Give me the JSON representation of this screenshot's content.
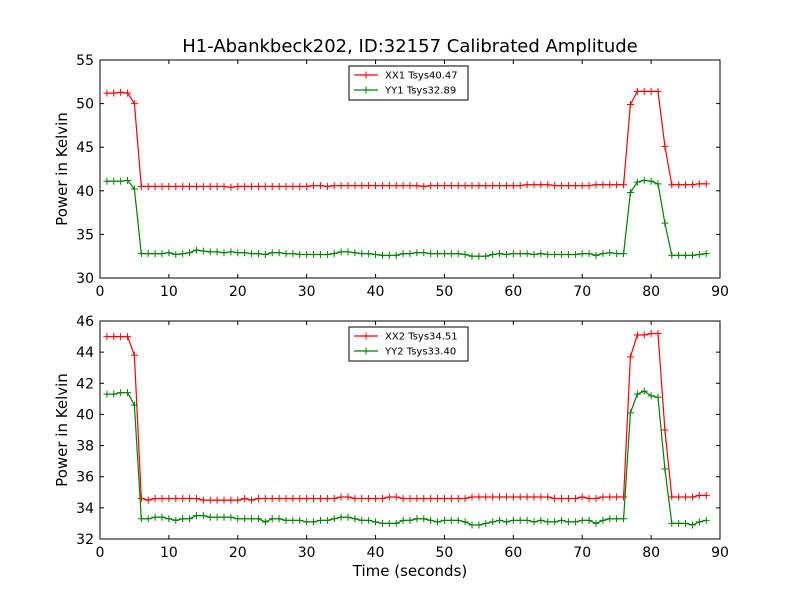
{
  "figure": {
    "title": "H1-Abankbeck202, ID:32157 Calibrated Amplitude",
    "xlabel": "Time (seconds)"
  },
  "chart_data": [
    {
      "type": "line",
      "ylabel": "Power in Kelvin",
      "xlim": [
        0,
        90
      ],
      "ylim": [
        30,
        55
      ],
      "xticks": [
        0,
        10,
        20,
        30,
        40,
        50,
        60,
        70,
        80,
        90
      ],
      "yticks": [
        30,
        35,
        40,
        45,
        50,
        55
      ],
      "grid": false,
      "legend": "top-center",
      "x": [
        1,
        2,
        3,
        4,
        5,
        6,
        7,
        8,
        9,
        10,
        11,
        12,
        13,
        14,
        15,
        16,
        17,
        18,
        19,
        20,
        21,
        22,
        23,
        24,
        25,
        26,
        27,
        28,
        29,
        30,
        31,
        32,
        33,
        34,
        35,
        36,
        37,
        38,
        39,
        40,
        41,
        42,
        43,
        44,
        45,
        46,
        47,
        48,
        49,
        50,
        51,
        52,
        53,
        54,
        55,
        56,
        57,
        58,
        59,
        60,
        61,
        62,
        63,
        64,
        65,
        66,
        67,
        68,
        69,
        70,
        71,
        72,
        73,
        74,
        75,
        76,
        77,
        78,
        79,
        80,
        81,
        82,
        83,
        84,
        85,
        86,
        87,
        88
      ],
      "series": [
        {
          "name": "XX1 Tsys40.47",
          "color": "#ff0000",
          "values": [
            51.2,
            51.2,
            51.3,
            51.2,
            50.0,
            40.5,
            40.5,
            40.5,
            40.5,
            40.5,
            40.5,
            40.5,
            40.5,
            40.5,
            40.5,
            40.5,
            40.5,
            40.5,
            40.4,
            40.5,
            40.5,
            40.5,
            40.5,
            40.5,
            40.5,
            40.5,
            40.5,
            40.5,
            40.5,
            40.5,
            40.6,
            40.6,
            40.5,
            40.6,
            40.6,
            40.6,
            40.6,
            40.6,
            40.6,
            40.6,
            40.6,
            40.6,
            40.6,
            40.6,
            40.6,
            40.6,
            40.5,
            40.6,
            40.6,
            40.6,
            40.6,
            40.6,
            40.6,
            40.6,
            40.6,
            40.6,
            40.6,
            40.6,
            40.6,
            40.6,
            40.6,
            40.7,
            40.7,
            40.7,
            40.7,
            40.6,
            40.6,
            40.6,
            40.6,
            40.6,
            40.6,
            40.7,
            40.7,
            40.7,
            40.7,
            40.7,
            49.9,
            51.4,
            51.4,
            51.4,
            51.4,
            45.1,
            40.7,
            40.7,
            40.7,
            40.7,
            40.8,
            40.8
          ]
        },
        {
          "name": "YY1 Tsys32.89",
          "color": "#008000",
          "values": [
            41.1,
            41.1,
            41.1,
            41.2,
            40.2,
            32.8,
            32.8,
            32.8,
            32.8,
            32.9,
            32.7,
            32.8,
            32.9,
            33.2,
            33.1,
            33.0,
            33.0,
            32.9,
            33.0,
            32.9,
            32.9,
            32.8,
            32.8,
            32.7,
            32.9,
            32.9,
            32.8,
            32.8,
            32.7,
            32.7,
            32.7,
            32.7,
            32.7,
            32.8,
            33.0,
            33.0,
            32.9,
            32.8,
            32.8,
            32.7,
            32.6,
            32.6,
            32.6,
            32.8,
            32.8,
            32.9,
            32.9,
            32.8,
            32.8,
            32.8,
            32.8,
            32.8,
            32.7,
            32.5,
            32.5,
            32.5,
            32.7,
            32.8,
            32.7,
            32.8,
            32.8,
            32.8,
            32.7,
            32.8,
            32.7,
            32.7,
            32.7,
            32.7,
            32.7,
            32.8,
            32.8,
            32.6,
            32.8,
            32.9,
            32.8,
            32.8,
            39.8,
            41.0,
            41.2,
            41.1,
            40.8,
            36.3,
            32.6,
            32.6,
            32.6,
            32.6,
            32.7,
            32.8
          ]
        }
      ]
    },
    {
      "type": "line",
      "ylabel": "Power in Kelvin",
      "xlim": [
        0,
        90
      ],
      "ylim": [
        32,
        46
      ],
      "xticks": [
        0,
        10,
        20,
        30,
        40,
        50,
        60,
        70,
        80,
        90
      ],
      "yticks": [
        32,
        34,
        36,
        38,
        40,
        42,
        44,
        46
      ],
      "grid": false,
      "legend": "top-center",
      "x": [
        1,
        2,
        3,
        4,
        5,
        6,
        7,
        8,
        9,
        10,
        11,
        12,
        13,
        14,
        15,
        16,
        17,
        18,
        19,
        20,
        21,
        22,
        23,
        24,
        25,
        26,
        27,
        28,
        29,
        30,
        31,
        32,
        33,
        34,
        35,
        36,
        37,
        38,
        39,
        40,
        41,
        42,
        43,
        44,
        45,
        46,
        47,
        48,
        49,
        50,
        51,
        52,
        53,
        54,
        55,
        56,
        57,
        58,
        59,
        60,
        61,
        62,
        63,
        64,
        65,
        66,
        67,
        68,
        69,
        70,
        71,
        72,
        73,
        74,
        75,
        76,
        77,
        78,
        79,
        80,
        81,
        82,
        83,
        84,
        85,
        86,
        87,
        88
      ],
      "series": [
        {
          "name": "XX2 Tsys34.51",
          "color": "#ff0000",
          "values": [
            45.0,
            45.0,
            45.0,
            45.0,
            43.8,
            34.6,
            34.5,
            34.6,
            34.6,
            34.6,
            34.6,
            34.6,
            34.6,
            34.6,
            34.5,
            34.5,
            34.5,
            34.5,
            34.5,
            34.5,
            34.6,
            34.5,
            34.6,
            34.6,
            34.6,
            34.6,
            34.6,
            34.6,
            34.6,
            34.6,
            34.6,
            34.6,
            34.6,
            34.6,
            34.7,
            34.7,
            34.6,
            34.6,
            34.6,
            34.6,
            34.6,
            34.7,
            34.7,
            34.6,
            34.6,
            34.6,
            34.6,
            34.6,
            34.6,
            34.6,
            34.6,
            34.6,
            34.6,
            34.7,
            34.7,
            34.7,
            34.7,
            34.7,
            34.7,
            34.7,
            34.7,
            34.7,
            34.7,
            34.7,
            34.7,
            34.6,
            34.6,
            34.6,
            34.6,
            34.7,
            34.6,
            34.6,
            34.7,
            34.7,
            34.7,
            34.7,
            43.7,
            45.1,
            45.1,
            45.2,
            45.2,
            39.0,
            34.7,
            34.7,
            34.7,
            34.7,
            34.8,
            34.8
          ]
        },
        {
          "name": "YY2 Tsys33.40",
          "color": "#008000",
          "values": [
            41.3,
            41.3,
            41.4,
            41.4,
            40.6,
            33.3,
            33.3,
            33.4,
            33.4,
            33.3,
            33.2,
            33.3,
            33.3,
            33.5,
            33.5,
            33.4,
            33.4,
            33.4,
            33.4,
            33.3,
            33.3,
            33.3,
            33.3,
            33.1,
            33.3,
            33.3,
            33.2,
            33.2,
            33.2,
            33.1,
            33.1,
            33.2,
            33.2,
            33.3,
            33.4,
            33.4,
            33.3,
            33.2,
            33.2,
            33.1,
            33.0,
            33.0,
            33.0,
            33.2,
            33.2,
            33.3,
            33.3,
            33.2,
            33.1,
            33.2,
            33.2,
            33.2,
            33.1,
            32.9,
            32.9,
            33.0,
            33.1,
            33.2,
            33.1,
            33.2,
            33.2,
            33.2,
            33.1,
            33.2,
            33.1,
            33.1,
            33.2,
            33.1,
            33.1,
            33.2,
            33.2,
            33.0,
            33.2,
            33.3,
            33.3,
            33.3,
            40.1,
            41.3,
            41.5,
            41.2,
            41.1,
            36.5,
            33.0,
            33.0,
            33.0,
            32.9,
            33.1,
            33.2
          ]
        }
      ]
    }
  ]
}
